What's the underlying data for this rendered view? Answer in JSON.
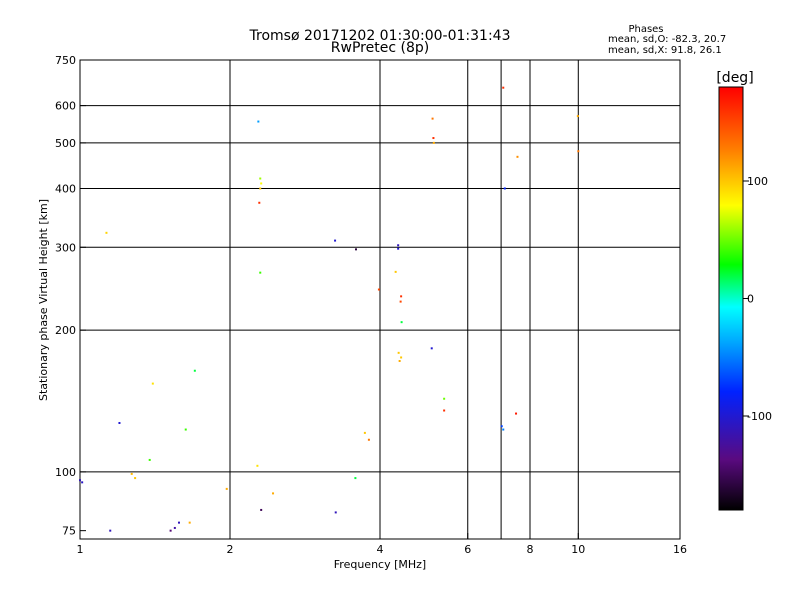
{
  "chart_data": {
    "type": "scatter",
    "title": "Tromsø 20171202 01:30:00-01:31:43",
    "subtitle": "RwPretec (8p)",
    "xlabel": "Frequency [MHz]",
    "ylabel": "Stationary phase Virtual Height [km]",
    "xscale": "log",
    "yscale": "log",
    "xlim": [
      1,
      16
    ],
    "ylim": [
      72,
      750
    ],
    "x_ticks": [
      1,
      2,
      4,
      6,
      8,
      10,
      16
    ],
    "y_ticks": [
      75,
      100,
      200,
      300,
      400,
      500,
      600,
      750
    ],
    "x_grid": [
      2,
      4,
      6,
      7,
      8,
      10
    ],
    "y_grid": [
      100,
      200,
      300,
      400,
      500,
      600
    ],
    "stats": {
      "heading": "Phases",
      "line1": "mean, sd,O: -82.3, 20.7",
      "line2": "mean, sd,X:  91.8, 26.1"
    },
    "colorbar": {
      "label": "[deg]",
      "range": [
        -180,
        180
      ],
      "ticks": [
        100,
        0,
        -100
      ],
      "colormap": "rainbow"
    },
    "points": [
      [
        1.0,
        96,
        -110
      ],
      [
        1.01,
        95,
        -105
      ],
      [
        1.15,
        75,
        -110
      ],
      [
        1.13,
        322,
        95
      ],
      [
        1.2,
        127,
        -100
      ],
      [
        1.27,
        99,
        105
      ],
      [
        1.29,
        97,
        100
      ],
      [
        1.38,
        106,
        40
      ],
      [
        1.4,
        154,
        90
      ],
      [
        1.52,
        75,
        -140
      ],
      [
        1.55,
        76,
        -120
      ],
      [
        1.58,
        78,
        -110
      ],
      [
        1.66,
        78,
        110
      ],
      [
        1.63,
        123,
        40
      ],
      [
        1.7,
        164,
        20
      ],
      [
        1.97,
        92,
        110
      ],
      [
        2.27,
        103,
        90
      ],
      [
        2.31,
        83,
        -150
      ],
      [
        2.44,
        90,
        110
      ],
      [
        2.28,
        555,
        -40
      ],
      [
        2.3,
        420,
        60
      ],
      [
        2.31,
        410,
        80
      ],
      [
        2.3,
        400,
        100
      ],
      [
        2.29,
        373,
        160
      ],
      [
        2.3,
        265,
        40
      ],
      [
        3.25,
        310,
        -100
      ],
      [
        3.58,
        297,
        -160
      ],
      [
        3.26,
        82,
        -110
      ],
      [
        3.57,
        97,
        20
      ],
      [
        3.73,
        121,
        100
      ],
      [
        3.8,
        117,
        130
      ],
      [
        3.98,
        244,
        150
      ],
      [
        4.35,
        303,
        -110
      ],
      [
        4.35,
        298,
        -100
      ],
      [
        4.3,
        266,
        100
      ],
      [
        4.41,
        236,
        160
      ],
      [
        4.4,
        230,
        150
      ],
      [
        4.42,
        208,
        20
      ],
      [
        4.36,
        179,
        100
      ],
      [
        4.41,
        175,
        100
      ],
      [
        4.38,
        172,
        110
      ],
      [
        5.1,
        563,
        130
      ],
      [
        5.12,
        512,
        160
      ],
      [
        5.13,
        500,
        110
      ],
      [
        5.08,
        183,
        -100
      ],
      [
        5.38,
        143,
        50
      ],
      [
        5.38,
        135,
        160
      ],
      [
        7.07,
        655,
        160
      ],
      [
        7.12,
        400,
        -80
      ],
      [
        7.02,
        125,
        -70
      ],
      [
        7.07,
        123,
        -50
      ],
      [
        7.5,
        133,
        170
      ],
      [
        7.55,
        467,
        120
      ],
      [
        9.98,
        570,
        110
      ],
      [
        10.0,
        480,
        130
      ]
    ]
  }
}
